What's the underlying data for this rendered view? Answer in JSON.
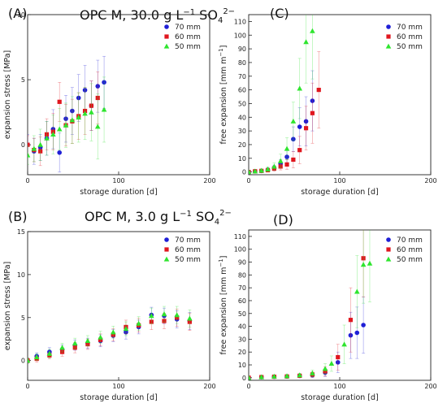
{
  "figure": {
    "headings": {
      "top": {
        "prefix": "OPC M, 30.0 g L",
        "sup1": "−1",
        "mid": " SO",
        "sub": "4",
        "sup2": "2−"
      },
      "bottom": {
        "prefix": "OPC M, 3.0 g L",
        "sup1": "−1",
        "mid": " SO",
        "sub": "4",
        "sup2": "2−"
      }
    }
  },
  "colors": {
    "70 mm": "#1f1fd6",
    "60 mm": "#e0161e",
    "50 mm": "#2ee52e"
  },
  "chart_data": [
    {
      "id": "A",
      "panel_label": "(A)",
      "type": "scatter",
      "xlabel": "storage duration [d]",
      "ylabel": "expansion stress [MPa]",
      "xlim": [
        0,
        200
      ],
      "ylim": [
        -2.3,
        10
      ],
      "xticks": [
        0,
        100,
        200
      ],
      "yticks": [
        0,
        5,
        10
      ],
      "legend_position": "top-right",
      "series": [
        {
          "name": "70 mm",
          "marker": "circle",
          "points": [
            [
              0,
              0
            ],
            [
              7,
              -0.5
            ],
            [
              14,
              -0.2
            ],
            [
              21,
              0.5
            ],
            [
              28,
              1.2
            ],
            [
              35,
              -0.6
            ],
            [
              42,
              2.0
            ],
            [
              49,
              2.6
            ],
            [
              56,
              3.6
            ],
            [
              63,
              4.2
            ],
            [
              70,
              3.0
            ],
            [
              77,
              4.5
            ],
            [
              84,
              4.8
            ]
          ],
          "err": [
            0.8,
            1.0,
            1.0,
            1.3,
            1.5,
            1.5,
            1.8,
            1.8,
            1.8,
            1.9,
            1.9,
            2.0,
            2.0
          ]
        },
        {
          "name": "60 mm",
          "marker": "square",
          "points": [
            [
              0,
              0
            ],
            [
              7,
              -0.4
            ],
            [
              14,
              -0.5
            ],
            [
              21,
              0.8
            ],
            [
              28,
              1.0
            ],
            [
              35,
              3.3
            ],
            [
              42,
              1.5
            ],
            [
              49,
              1.8
            ],
            [
              56,
              2.2
            ],
            [
              63,
              2.6
            ],
            [
              70,
              3.0
            ],
            [
              77,
              3.6
            ]
          ],
          "err": [
            0.7,
            0.9,
            1.1,
            1.2,
            1.4,
            1.5,
            1.6,
            1.7,
            1.8,
            1.8,
            1.9,
            2.0
          ]
        },
        {
          "name": "50 mm",
          "marker": "triangle",
          "points": [
            [
              0,
              -0.8
            ],
            [
              7,
              -0.3
            ],
            [
              14,
              0.0
            ],
            [
              21,
              0.5
            ],
            [
              28,
              0.8
            ],
            [
              35,
              1.2
            ],
            [
              42,
              1.5
            ],
            [
              49,
              1.9
            ],
            [
              56,
              2.1
            ],
            [
              63,
              2.4
            ],
            [
              70,
              2.5
            ],
            [
              77,
              1.4
            ],
            [
              84,
              2.7
            ]
          ],
          "err": [
            0.7,
            1.0,
            1.2,
            1.3,
            1.5,
            1.6,
            1.7,
            1.8,
            1.9,
            2.0,
            2.2,
            2.5,
            2.5
          ]
        }
      ]
    },
    {
      "id": "C",
      "panel_label": "(C)",
      "type": "scatter",
      "xlabel": "storage duration [d]",
      "ylabel": "free expansion [mm m",
      "ylabel_sup": "−1",
      "ylabel_suffix": "]",
      "xlim": [
        0,
        200
      ],
      "ylim": [
        -2,
        115
      ],
      "xticks": [
        0,
        100,
        200
      ],
      "yticks": [
        0,
        10,
        20,
        30,
        40,
        50,
        60,
        70,
        80,
        90,
        100,
        110
      ],
      "legend_position": "top-right",
      "series": [
        {
          "name": "70 mm",
          "marker": "circle",
          "points": [
            [
              0,
              0
            ],
            [
              7,
              0.5
            ],
            [
              14,
              0.8
            ],
            [
              21,
              1.5
            ],
            [
              28,
              3.0
            ],
            [
              35,
              6.0
            ],
            [
              42,
              11.0
            ],
            [
              49,
              24.0
            ],
            [
              56,
              33.0
            ],
            [
              63,
              37.0
            ],
            [
              70,
              52.0
            ]
          ],
          "err": [
            0.5,
            0.8,
            1.0,
            1.5,
            2.0,
            3.0,
            5.0,
            9.0,
            14.0,
            18.0,
            22.0
          ]
        },
        {
          "name": "60 mm",
          "marker": "square",
          "points": [
            [
              0,
              0
            ],
            [
              7,
              0.5
            ],
            [
              14,
              0.8
            ],
            [
              21,
              1.3
            ],
            [
              28,
              2.5
            ],
            [
              35,
              4.0
            ],
            [
              42,
              5.5
            ],
            [
              49,
              9.0
            ],
            [
              56,
              16.0
            ],
            [
              63,
              32.0
            ],
            [
              70,
              43.0
            ],
            [
              77,
              60.0
            ]
          ],
          "err": [
            0.5,
            0.8,
            1.0,
            1.3,
            1.8,
            2.5,
            3.5,
            6.0,
            10.0,
            16.0,
            22.0,
            28.0
          ]
        },
        {
          "name": "50 mm",
          "marker": "triangle",
          "points": [
            [
              0,
              0
            ],
            [
              7,
              0.5
            ],
            [
              14,
              1.0
            ],
            [
              21,
              2.0
            ],
            [
              28,
              4.0
            ],
            [
              35,
              8.0
            ],
            [
              42,
              17.0
            ],
            [
              49,
              37.0
            ],
            [
              56,
              61.0
            ],
            [
              63,
              95.0
            ],
            [
              70,
              103.0
            ]
          ],
          "err": [
            0.5,
            0.8,
            1.0,
            1.5,
            2.5,
            5.0,
            8.0,
            14.0,
            22.0,
            30.0,
            35.0
          ]
        }
      ]
    },
    {
      "id": "B",
      "panel_label": "(B)",
      "type": "scatter",
      "xlabel": "storage duration [d]",
      "ylabel": "expansion stress [MPa]",
      "xlim": [
        0,
        200
      ],
      "ylim": [
        -2.3,
        15
      ],
      "xticks": [
        0,
        100,
        200
      ],
      "yticks": [
        0,
        5,
        10,
        15
      ],
      "legend_position": "top-right",
      "series": [
        {
          "name": "70 mm",
          "marker": "circle",
          "points": [
            [
              0,
              0
            ],
            [
              10,
              0.5
            ],
            [
              24,
              1.0
            ],
            [
              38,
              1.3
            ],
            [
              52,
              1.8
            ],
            [
              66,
              2.0
            ],
            [
              80,
              2.3
            ],
            [
              94,
              2.9
            ],
            [
              108,
              3.3
            ],
            [
              122,
              3.9
            ],
            [
              136,
              5.3
            ],
            [
              150,
              5.2
            ],
            [
              164,
              4.8
            ],
            [
              178,
              4.6
            ]
          ],
          "err": [
            0.3,
            0.4,
            0.5,
            0.5,
            0.6,
            0.6,
            0.7,
            0.7,
            0.8,
            0.8,
            0.9,
            0.9,
            1.0,
            1.0
          ]
        },
        {
          "name": "60 mm",
          "marker": "square",
          "points": [
            [
              0,
              0
            ],
            [
              10,
              0.2
            ],
            [
              24,
              0.6
            ],
            [
              38,
              1.0
            ],
            [
              52,
              1.5
            ],
            [
              66,
              1.9
            ],
            [
              80,
              2.4
            ],
            [
              94,
              3.0
            ],
            [
              108,
              3.9
            ],
            [
              122,
              4.1
            ],
            [
              136,
              4.5
            ],
            [
              150,
              4.6
            ],
            [
              164,
              5.0
            ],
            [
              178,
              4.5
            ]
          ],
          "err": [
            0.3,
            0.4,
            0.4,
            0.5,
            0.6,
            0.6,
            0.7,
            0.7,
            0.8,
            0.8,
            0.9,
            0.9,
            1.0,
            1.0
          ]
        },
        {
          "name": "50 mm",
          "marker": "triangle",
          "points": [
            [
              0,
              0
            ],
            [
              10,
              0.4
            ],
            [
              24,
              0.8
            ],
            [
              38,
              1.5
            ],
            [
              52,
              2.0
            ],
            [
              66,
              2.3
            ],
            [
              80,
              2.7
            ],
            [
              94,
              3.3
            ],
            [
              108,
              3.7
            ],
            [
              122,
              4.3
            ],
            [
              136,
              5.2
            ],
            [
              150,
              5.4
            ],
            [
              164,
              5.3
            ],
            [
              178,
              4.9
            ]
          ],
          "err": [
            0.3,
            0.4,
            0.5,
            0.5,
            0.6,
            0.6,
            0.7,
            0.7,
            0.8,
            0.8,
            0.9,
            0.9,
            1.0,
            1.0
          ]
        }
      ]
    },
    {
      "id": "D",
      "panel_label": "(D)",
      "type": "scatter",
      "xlabel": "storage duration [d]",
      "ylabel": "free expansion [mm m",
      "ylabel_sup": "−1",
      "ylabel_suffix": "]",
      "xlim": [
        0,
        200
      ],
      "ylim": [
        -2,
        115
      ],
      "xticks": [
        0,
        100,
        200
      ],
      "yticks": [
        0,
        10,
        20,
        30,
        40,
        50,
        60,
        70,
        80,
        90,
        100,
        110
      ],
      "legend_position": "top-right",
      "series": [
        {
          "name": "70 mm",
          "marker": "circle",
          "points": [
            [
              0,
              0
            ],
            [
              14,
              0.5
            ],
            [
              28,
              0.8
            ],
            [
              42,
              1.0
            ],
            [
              56,
              1.5
            ],
            [
              70,
              2.0
            ],
            [
              84,
              4.0
            ],
            [
              98,
              12.0
            ],
            [
              112,
              33.0
            ],
            [
              119,
              35.0
            ],
            [
              126,
              41.0
            ]
          ],
          "err": [
            0.5,
            0.7,
            0.8,
            1.0,
            1.3,
            1.8,
            3.0,
            8.0,
            18.0,
            20.0,
            22.0
          ]
        },
        {
          "name": "60 mm",
          "marker": "square",
          "points": [
            [
              0,
              0
            ],
            [
              14,
              0.5
            ],
            [
              28,
              0.8
            ],
            [
              42,
              1.0
            ],
            [
              56,
              1.5
            ],
            [
              70,
              2.5
            ],
            [
              84,
              5.0
            ],
            [
              98,
              16.0
            ],
            [
              112,
              45.0
            ],
            [
              126,
              93.0
            ]
          ],
          "err": [
            0.5,
            0.7,
            0.8,
            1.0,
            1.3,
            2.0,
            3.5,
            10.0,
            25.0,
            30.0
          ]
        },
        {
          "name": "50 mm",
          "marker": "triangle",
          "points": [
            [
              0,
              0
            ],
            [
              14,
              0.5
            ],
            [
              28,
              1.0
            ],
            [
              42,
              1.3
            ],
            [
              56,
              2.0
            ],
            [
              70,
              3.5
            ],
            [
              84,
              7.0
            ],
            [
              91,
              11.0
            ],
            [
              105,
              26.0
            ],
            [
              119,
              67.0
            ],
            [
              126,
              88.0
            ],
            [
              133,
              89.0
            ]
          ],
          "err": [
            0.5,
            0.7,
            0.8,
            1.0,
            1.5,
            2.5,
            4.0,
            6.0,
            15.0,
            28.0,
            30.0,
            30.0
          ]
        }
      ]
    }
  ]
}
